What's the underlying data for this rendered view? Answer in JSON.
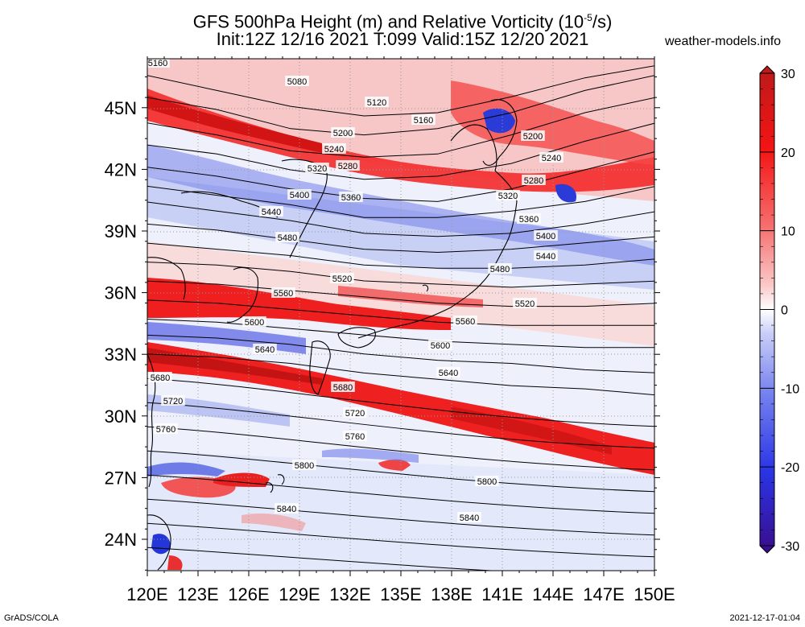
{
  "title": {
    "line1_pre": "GFS 500hPa Height (m) and Relative Vorticity (10",
    "line1_sup": "-5",
    "line1_post": "/s)",
    "line2": "Init:12Z 12/16 2021 T:099 Valid:15Z 12/20 2021"
  },
  "site": "weather-models.info",
  "footer": {
    "left": "GrADS/COLA",
    "right": "2021-12-17-01:04"
  },
  "map": {
    "lon_labels": [
      "120E",
      "123E",
      "126E",
      "129E",
      "132E",
      "135E",
      "138E",
      "141E",
      "144E",
      "147E",
      "150E"
    ],
    "lat_labels": [
      "24N",
      "27N",
      "30N",
      "33N",
      "36N",
      "39N",
      "42N",
      "45N"
    ],
    "contours": [
      {
        "v": "5080",
        "ly": [
          0.05,
          0.1,
          0.15,
          0.18,
          0.17,
          0.12,
          0.06,
          0.02
        ]
      },
      {
        "v": "5120",
        "ly": [
          0.12,
          0.16,
          0.22,
          0.24,
          0.22,
          0.17,
          0.1,
          0.05
        ]
      },
      {
        "v": "5160",
        "ly": [
          0.2,
          0.24,
          0.29,
          0.31,
          0.3,
          0.24,
          0.17,
          0.12
        ]
      },
      {
        "v": "5200",
        "ly": [
          0.27,
          0.3,
          0.35,
          0.38,
          0.37,
          0.33,
          0.26,
          0.2
        ]
      },
      {
        "v": "5240",
        "ly": [
          0.34,
          0.37,
          0.41,
          0.44,
          0.45,
          0.41,
          0.35,
          0.29
        ]
      },
      {
        "v": "5280",
        "ly": [
          0.4,
          0.43,
          0.46,
          0.5,
          0.5,
          0.48,
          0.45,
          0.4
        ]
      },
      {
        "v": "5320",
        "ly": [
          0.45,
          0.48,
          0.51,
          0.55,
          0.56,
          0.55,
          0.52,
          0.48
        ]
      },
      {
        "v": "5360",
        "ly": [
          0.52,
          0.54,
          0.57,
          0.6,
          0.61,
          0.6,
          0.58,
          0.56
        ]
      },
      {
        "v": "5400",
        "ly": [
          0.58,
          0.6,
          0.62,
          0.65,
          0.66,
          0.66,
          0.65,
          0.63
        ]
      },
      {
        "v": "5440",
        "ly": [
          0.64,
          0.65,
          0.67,
          0.7,
          0.71,
          0.72,
          0.71,
          0.7
        ]
      },
      {
        "v": "5480",
        "ly": [
          0.7,
          0.71,
          0.73,
          0.75,
          0.77,
          0.78,
          0.78,
          0.77
        ]
      },
      {
        "v": "5520",
        "ly": [
          0.76,
          0.77,
          0.79,
          0.81,
          0.83,
          0.84,
          0.84,
          0.84
        ]
      },
      {
        "v": "5560",
        "ly": [
          0.82,
          0.83,
          0.85,
          0.87,
          0.89,
          0.9,
          0.91,
          0.91
        ]
      },
      {
        "v": "5600",
        "ly": [
          0.87,
          0.88,
          0.9,
          0.93,
          0.95,
          0.96,
          0.98,
          0.99
        ]
      },
      {
        "v": "5640",
        "ly": [
          0.93,
          0.94,
          0.96,
          0.99,
          1.01,
          1.03,
          1.04,
          1.06
        ]
      }
    ],
    "contour_labels": [
      "5160",
      "5080",
      "5120",
      "5160",
      "5200",
      "5240",
      "5280",
      "5320",
      "5200",
      "5240",
      "5280",
      "5320",
      "5360",
      "5400",
      "5440",
      "5480",
      "5360",
      "5400",
      "5440",
      "5480",
      "5520",
      "5560",
      "5520",
      "5560",
      "5600",
      "5600",
      "5640",
      "5640",
      "5680",
      "5680",
      "5720",
      "5720",
      "5760",
      "5760",
      "5800",
      "5800",
      "5840",
      "5840"
    ]
  },
  "colorbar": {
    "tick_labels": [
      "30",
      "20",
      "10",
      "0",
      "-10",
      "-20",
      "-30"
    ],
    "colors": {
      "max": "#bb1a1a",
      "pos": "#f41414",
      "light_pos": "#fbc8c8",
      "zero": "#ffffff",
      "light_neg": "#c8cdf8",
      "neg": "#2a35e6",
      "min": "#3a0c8c"
    }
  }
}
